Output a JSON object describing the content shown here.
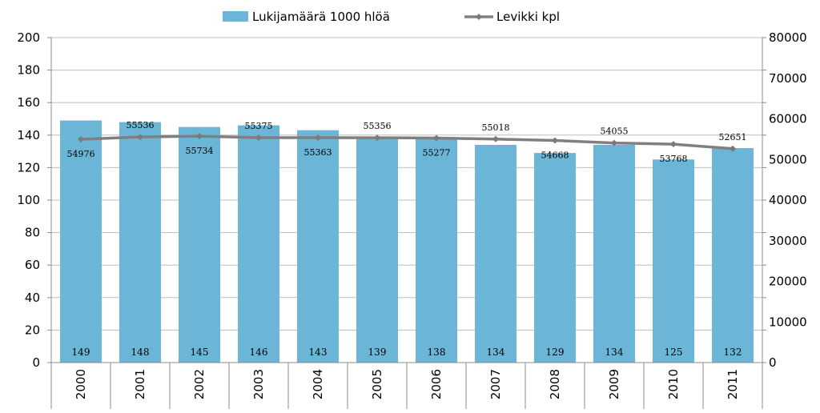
{
  "chart_data": {
    "type": "bar",
    "categories": [
      "2000",
      "2001",
      "2002",
      "2003",
      "2004",
      "2005",
      "2006",
      "2007",
      "2008",
      "2009",
      "2010",
      "2011"
    ],
    "series": [
      {
        "name": "Lukijamäärä 1000 hlöä",
        "type": "bar",
        "axis": "left",
        "values": [
          149,
          148,
          145,
          146,
          143,
          139,
          138,
          134,
          129,
          134,
          125,
          132
        ],
        "color": "#6bb5d6"
      },
      {
        "name": "Levikki kpl",
        "type": "line",
        "axis": "right",
        "values": [
          54976,
          55536,
          55734,
          55375,
          55363,
          55356,
          55277,
          55018,
          54668,
          54055,
          53768,
          52651
        ],
        "color": "#808080"
      }
    ],
    "ylim": [
      0,
      200
    ],
    "yticks": [
      0,
      20,
      40,
      60,
      80,
      100,
      120,
      140,
      160,
      180,
      200
    ],
    "y2lim": [
      0,
      80000
    ],
    "y2ticks": [
      0,
      10000,
      20000,
      30000,
      40000,
      50000,
      60000,
      70000,
      80000
    ],
    "grid": true,
    "legend": "top"
  }
}
